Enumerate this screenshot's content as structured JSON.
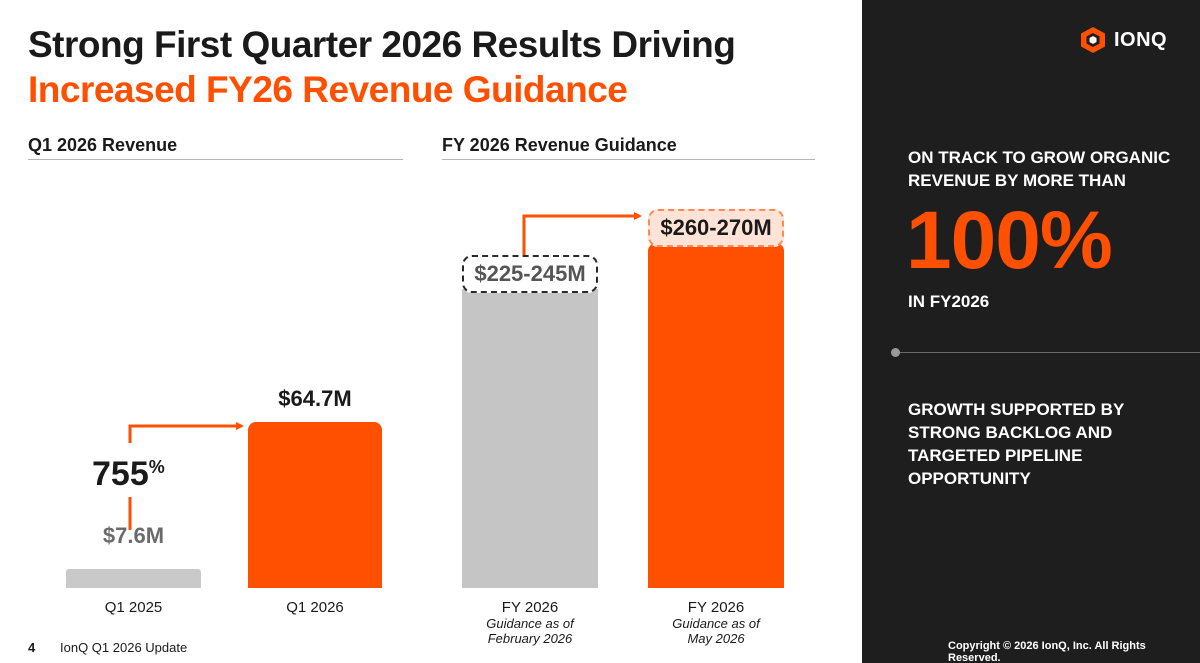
{
  "title": {
    "line1": "Strong First Quarter 2026 Results Driving",
    "line2": "Increased FY26 Revenue Guidance"
  },
  "logo": {
    "text": "IONQ",
    "icon": "ionq-hexagon-icon"
  },
  "colors": {
    "accent": "#ff4f00",
    "gray_bar": "#c5c5c5",
    "panel": "#1e1e1e"
  },
  "chart_data": [
    {
      "type": "bar",
      "title": "Q1 2026 Revenue",
      "categories": [
        "Q1 2025",
        "Q1 2026"
      ],
      "values": [
        7.6,
        64.7
      ],
      "value_labels": [
        "$7.6M",
        "$64.7M"
      ],
      "unit": "$M",
      "growth_label": "755",
      "growth_suffix": "%",
      "colors": [
        "#c9c9c9",
        "#ff4f00"
      ]
    },
    {
      "type": "bar",
      "title": "FY 2026 Revenue Guidance",
      "categories": [
        "FY 2026",
        "FY 2026"
      ],
      "category_sublabels": [
        "Guidance as of\nFebruary 2026",
        "Guidance as of\nMay 2026"
      ],
      "series": [
        {
          "values": [
            225,
            260
          ]
        },
        {
          "values": [
            245,
            270
          ]
        }
      ],
      "value_labels": [
        "$225-245M",
        "$260-270M"
      ],
      "unit": "$M",
      "colors": [
        "#c5c5c5",
        "#ff4f00"
      ]
    }
  ],
  "categories_text": {
    "q1_2025": "Q1 2025",
    "q1_2026": "Q1 2026",
    "fy_feb": "FY 2026",
    "fy_feb_sub1": "Guidance as of",
    "fy_feb_sub2": "February 2026",
    "fy_may": "FY 2026",
    "fy_may_sub1": "Guidance as of",
    "fy_may_sub2": "May 2026"
  },
  "panel": {
    "line1": "ON TRACK TO GROW ORGANIC",
    "line2": "REVENUE BY MORE THAN",
    "big": "100%",
    "line3": "IN FY2026",
    "support1": "GROWTH SUPPORTED BY",
    "support2": "STRONG BACKLOG AND",
    "support3": "TARGETED PIPELINE",
    "support4": "OPPORTUNITY"
  },
  "footer": {
    "page_number": "4",
    "deck_title": "IonQ Q1 2026 Update",
    "copyright": "Copyright © 2026 IonQ, Inc. All Rights Reserved."
  }
}
